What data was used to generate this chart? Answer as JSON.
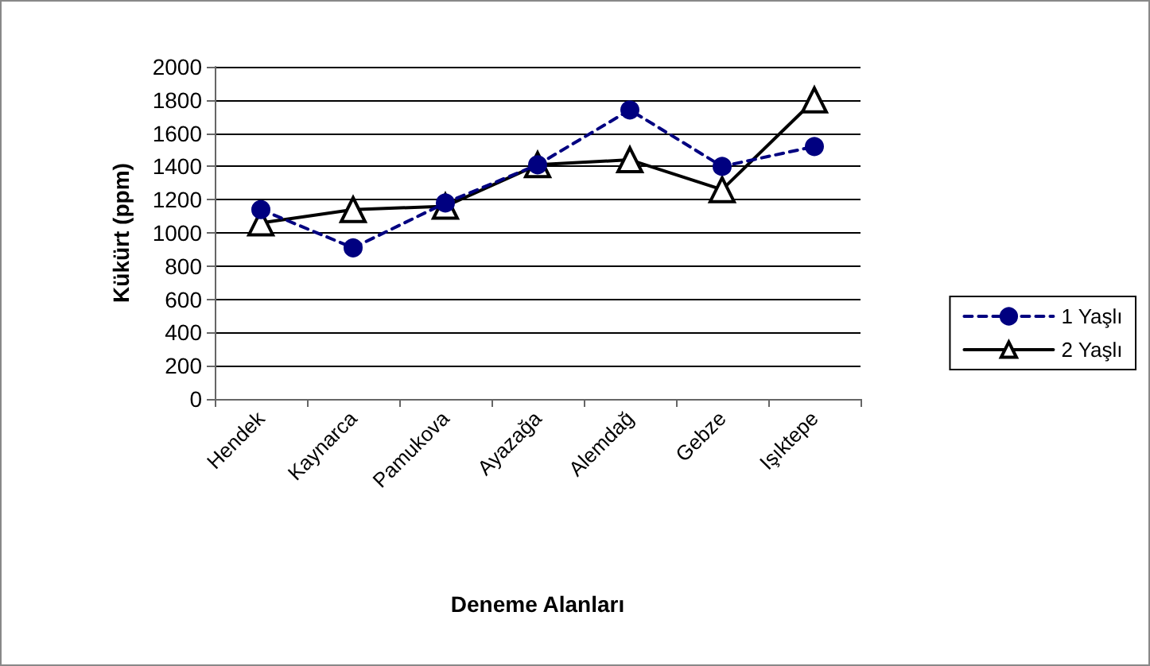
{
  "chart_data": {
    "type": "line",
    "xlabel": "Deneme Alanları",
    "ylabel": "Kükürt (ppm)",
    "categories": [
      "Hendek",
      "Kaynarca",
      "Pamukova",
      "Ayazağa",
      "Alemdağ",
      "Gebze",
      "Işıktepe"
    ],
    "series": [
      {
        "name": "1 Yaşlı",
        "color": "#000080",
        "marker": "circle",
        "line_style": "dashed",
        "values": [
          1140,
          910,
          1180,
          1410,
          1740,
          1400,
          1520
        ]
      },
      {
        "name": "2 Yaşlı",
        "color": "#000000",
        "marker": "triangle",
        "line_style": "solid",
        "values": [
          1060,
          1140,
          1160,
          1410,
          1440,
          1260,
          1800
        ]
      }
    ],
    "ylim": [
      0,
      2000
    ],
    "yticks": [
      0,
      200,
      400,
      600,
      800,
      1000,
      1200,
      1400,
      1600,
      1800,
      2000
    ],
    "grid": "y",
    "legend": "right"
  }
}
